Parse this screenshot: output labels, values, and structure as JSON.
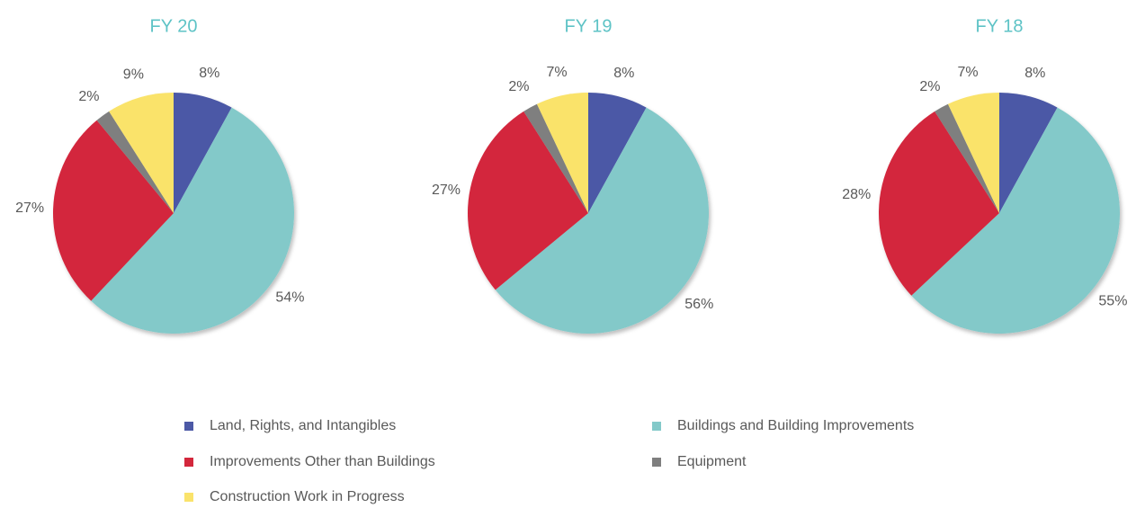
{
  "chart_data": [
    {
      "type": "pie",
      "title": "FY 20",
      "categories": [
        "Land, Rights, and Intangibles",
        "Buildings and Building Improvements",
        "Improvements Other than Buildings",
        "Equipment",
        "Construction Work in Progress"
      ],
      "values": [
        8,
        54,
        27,
        2,
        9
      ],
      "value_labels": [
        "8%",
        "54%",
        "27%",
        "2%",
        "9%"
      ],
      "colors": [
        "#4c59a6",
        "#83c9c9",
        "#d3273c",
        "#7f7f7f",
        "#fae36b"
      ]
    },
    {
      "type": "pie",
      "title": "FY 19",
      "categories": [
        "Land, Rights, and Intangibles",
        "Buildings and Building Improvements",
        "Improvements Other than Buildings",
        "Equipment",
        "Construction Work in Progress"
      ],
      "values": [
        8,
        56,
        27,
        2,
        7
      ],
      "value_labels": [
        "8%",
        "56%",
        "27%",
        "2%",
        "7%"
      ],
      "colors": [
        "#4c59a6",
        "#83c9c9",
        "#d3273c",
        "#7f7f7f",
        "#fae36b"
      ]
    },
    {
      "type": "pie",
      "title": "FY 18",
      "categories": [
        "Land, Rights, and Intangibles",
        "Buildings and Building Improvements",
        "Improvements Other than Buildings",
        "Equipment",
        "Construction Work in Progress"
      ],
      "values": [
        8,
        55,
        28,
        2,
        7
      ],
      "value_labels": [
        "8%",
        "55%",
        "28%",
        "2%",
        "7%"
      ],
      "colors": [
        "#4c59a6",
        "#83c9c9",
        "#d3273c",
        "#7f7f7f",
        "#fae36b"
      ]
    }
  ]
}
